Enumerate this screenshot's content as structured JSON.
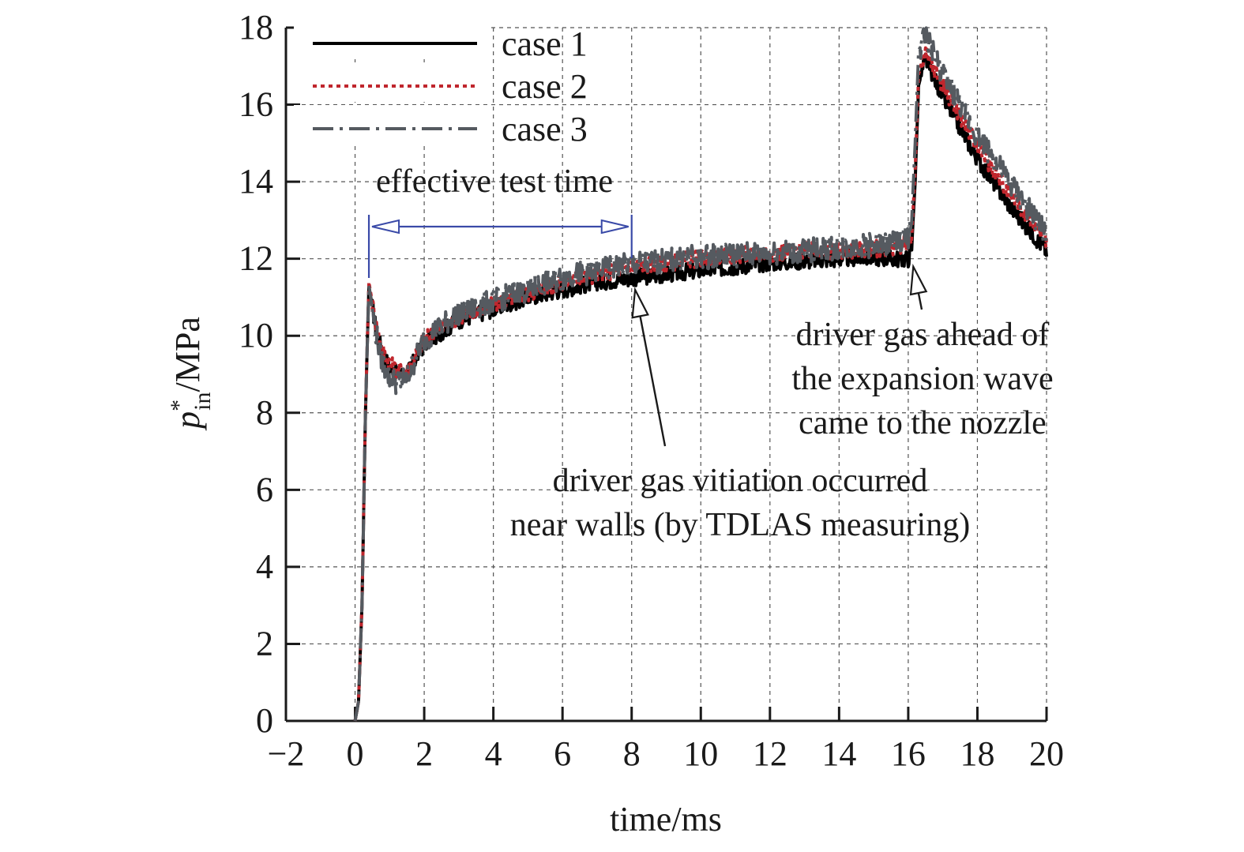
{
  "chart_data": {
    "type": "line",
    "xlabel": "time/ms",
    "ylabel": {
      "base": "p",
      "sup": "*",
      "sub": "in",
      "unit": "/MPa"
    },
    "xlim": [
      -2,
      20
    ],
    "ylim": [
      0,
      18
    ],
    "xticks": [
      -2,
      0,
      2,
      4,
      6,
      8,
      10,
      12,
      14,
      16,
      18,
      20
    ],
    "yticks": [
      0,
      2,
      4,
      6,
      8,
      10,
      12,
      14,
      16,
      18
    ],
    "xtick_labels": [
      "−2",
      "0",
      "2",
      "4",
      "6",
      "8",
      "10",
      "12",
      "14",
      "16",
      "18",
      "20"
    ],
    "ytick_labels": [
      "0",
      "2",
      "4",
      "6",
      "8",
      "10",
      "12",
      "14",
      "16",
      "18"
    ],
    "grid": true,
    "legend_position": "top-left",
    "series": [
      {
        "name": "case 1",
        "color": "#000000",
        "style": "solid",
        "x": [
          0,
          0.1,
          0.2,
          0.3,
          0.4,
          0.6,
          0.8,
          1.0,
          1.2,
          1.5,
          2,
          3,
          4,
          5,
          6,
          7,
          8,
          9,
          10,
          11,
          12,
          13,
          14,
          15,
          15.5,
          16,
          16.1,
          16.2,
          16.3,
          16.5,
          17,
          18,
          19,
          20
        ],
        "y": [
          0,
          0.5,
          3,
          8,
          11.3,
          10.2,
          9.5,
          9.2,
          9.0,
          9.0,
          9.8,
          10.4,
          10.7,
          11.0,
          11.2,
          11.4,
          11.5,
          11.6,
          11.7,
          11.8,
          11.9,
          11.95,
          12.0,
          12.05,
          12.0,
          12.0,
          12.3,
          14,
          16.5,
          17.2,
          16.2,
          14.6,
          13.3,
          12.2
        ]
      },
      {
        "name": "case 2",
        "color": "#c0262d",
        "style": "dotted",
        "x": [
          0,
          0.1,
          0.2,
          0.3,
          0.4,
          0.6,
          0.8,
          1.0,
          1.2,
          1.5,
          2,
          3,
          4,
          5,
          6,
          7,
          8,
          9,
          10,
          11,
          12,
          13,
          14,
          15,
          15.5,
          16,
          16.1,
          16.2,
          16.3,
          16.5,
          17,
          18,
          19,
          20
        ],
        "y": [
          0,
          0.5,
          3,
          8,
          11.4,
          10.3,
          9.6,
          9.3,
          9.1,
          9.1,
          9.9,
          10.5,
          10.8,
          11.1,
          11.4,
          11.6,
          11.8,
          11.9,
          12.0,
          12.1,
          12.15,
          12.2,
          12.2,
          12.25,
          12.3,
          12.4,
          12.6,
          14.3,
          16.8,
          17.3,
          16.5,
          14.9,
          13.6,
          12.5
        ]
      },
      {
        "name": "case 3",
        "color": "#555a60",
        "style": "dashdot",
        "x": [
          0,
          0.1,
          0.2,
          0.3,
          0.4,
          0.6,
          0.8,
          1.0,
          1.2,
          1.5,
          2,
          3,
          4,
          5,
          6,
          7,
          8,
          9,
          10,
          11,
          12,
          13,
          14,
          15,
          15.5,
          15.8,
          16,
          16.1,
          16.2,
          16.3,
          16.5,
          17,
          18,
          19,
          20
        ],
        "y": [
          0,
          0.5,
          3,
          8,
          11.3,
          10.1,
          9.3,
          8.9,
          8.8,
          8.9,
          9.9,
          10.6,
          10.9,
          11.2,
          11.5,
          11.7,
          11.85,
          11.95,
          12.05,
          12.1,
          12.15,
          12.2,
          12.3,
          12.35,
          12.4,
          12.5,
          12.6,
          13.0,
          15.0,
          17.4,
          17.8,
          16.8,
          15.2,
          13.9,
          12.6
        ]
      }
    ],
    "annotations": {
      "effective_test_time": {
        "label": "effective test time",
        "x_start": 0.4,
        "x_end": 8
      },
      "vitiation": {
        "lines": [
          "driver gas vitiation occurred",
          "near walls (by TDLAS measuring)"
        ],
        "point": [
          8.1,
          11.4
        ]
      },
      "driver_gas": {
        "lines": [
          "driver gas ahead of",
          "the expansion wave",
          "came to the nozzle"
        ],
        "point": [
          16.1,
          12.0
        ]
      }
    }
  }
}
